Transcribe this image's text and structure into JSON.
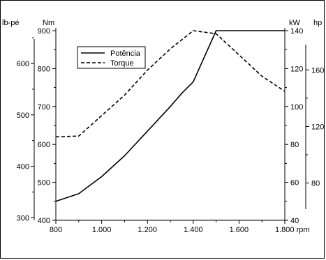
{
  "chart_data": {
    "type": "line",
    "title": "",
    "x": [
      800,
      900,
      1000,
      1100,
      1200,
      1300,
      1350,
      1400,
      1500,
      1600,
      1700,
      1800
    ],
    "x_ticks": [
      800,
      1000,
      1200,
      1400,
      1600,
      1800
    ],
    "x_tick_labels": [
      "800",
      "1.000",
      "1.200",
      "1.400",
      "1.600",
      "1.800 rpm"
    ],
    "xlim": [
      800,
      1800
    ],
    "xlabel": "rpm",
    "series": [
      {
        "name": "Potência",
        "axis": "kW",
        "style": "solid",
        "x": [
          800,
          900,
          1000,
          1100,
          1200,
          1300,
          1350,
          1400,
          1500,
          1800
        ],
        "values": [
          50,
          54,
          63,
          74,
          87,
          100,
          107,
          113,
          140,
          140
        ]
      },
      {
        "name": "Torque",
        "axis": "Nm",
        "style": "dashed",
        "x": [
          800,
          900,
          1000,
          1100,
          1200,
          1300,
          1400,
          1500,
          1600,
          1700,
          1800
        ],
        "values": [
          620,
          622,
          676,
          730,
          796,
          852,
          900,
          892,
          836,
          780,
          740
        ]
      }
    ],
    "axes": {
      "Nm": {
        "label": "Nm",
        "ylim": [
          400,
          900
        ],
        "ticks": [
          400,
          500,
          600,
          700,
          800,
          900
        ]
      },
      "lb_pe": {
        "label": "lb-pé",
        "ticks": [
          300,
          400,
          500,
          600
        ]
      },
      "kW": {
        "label": "kW",
        "ylim": [
          40,
          140
        ],
        "ticks": [
          40,
          60,
          80,
          100,
          120,
          140
        ]
      },
      "hp": {
        "label": "hp",
        "ticks": [
          80,
          120,
          160
        ]
      }
    },
    "legend_position": "top-left",
    "grid": false
  }
}
